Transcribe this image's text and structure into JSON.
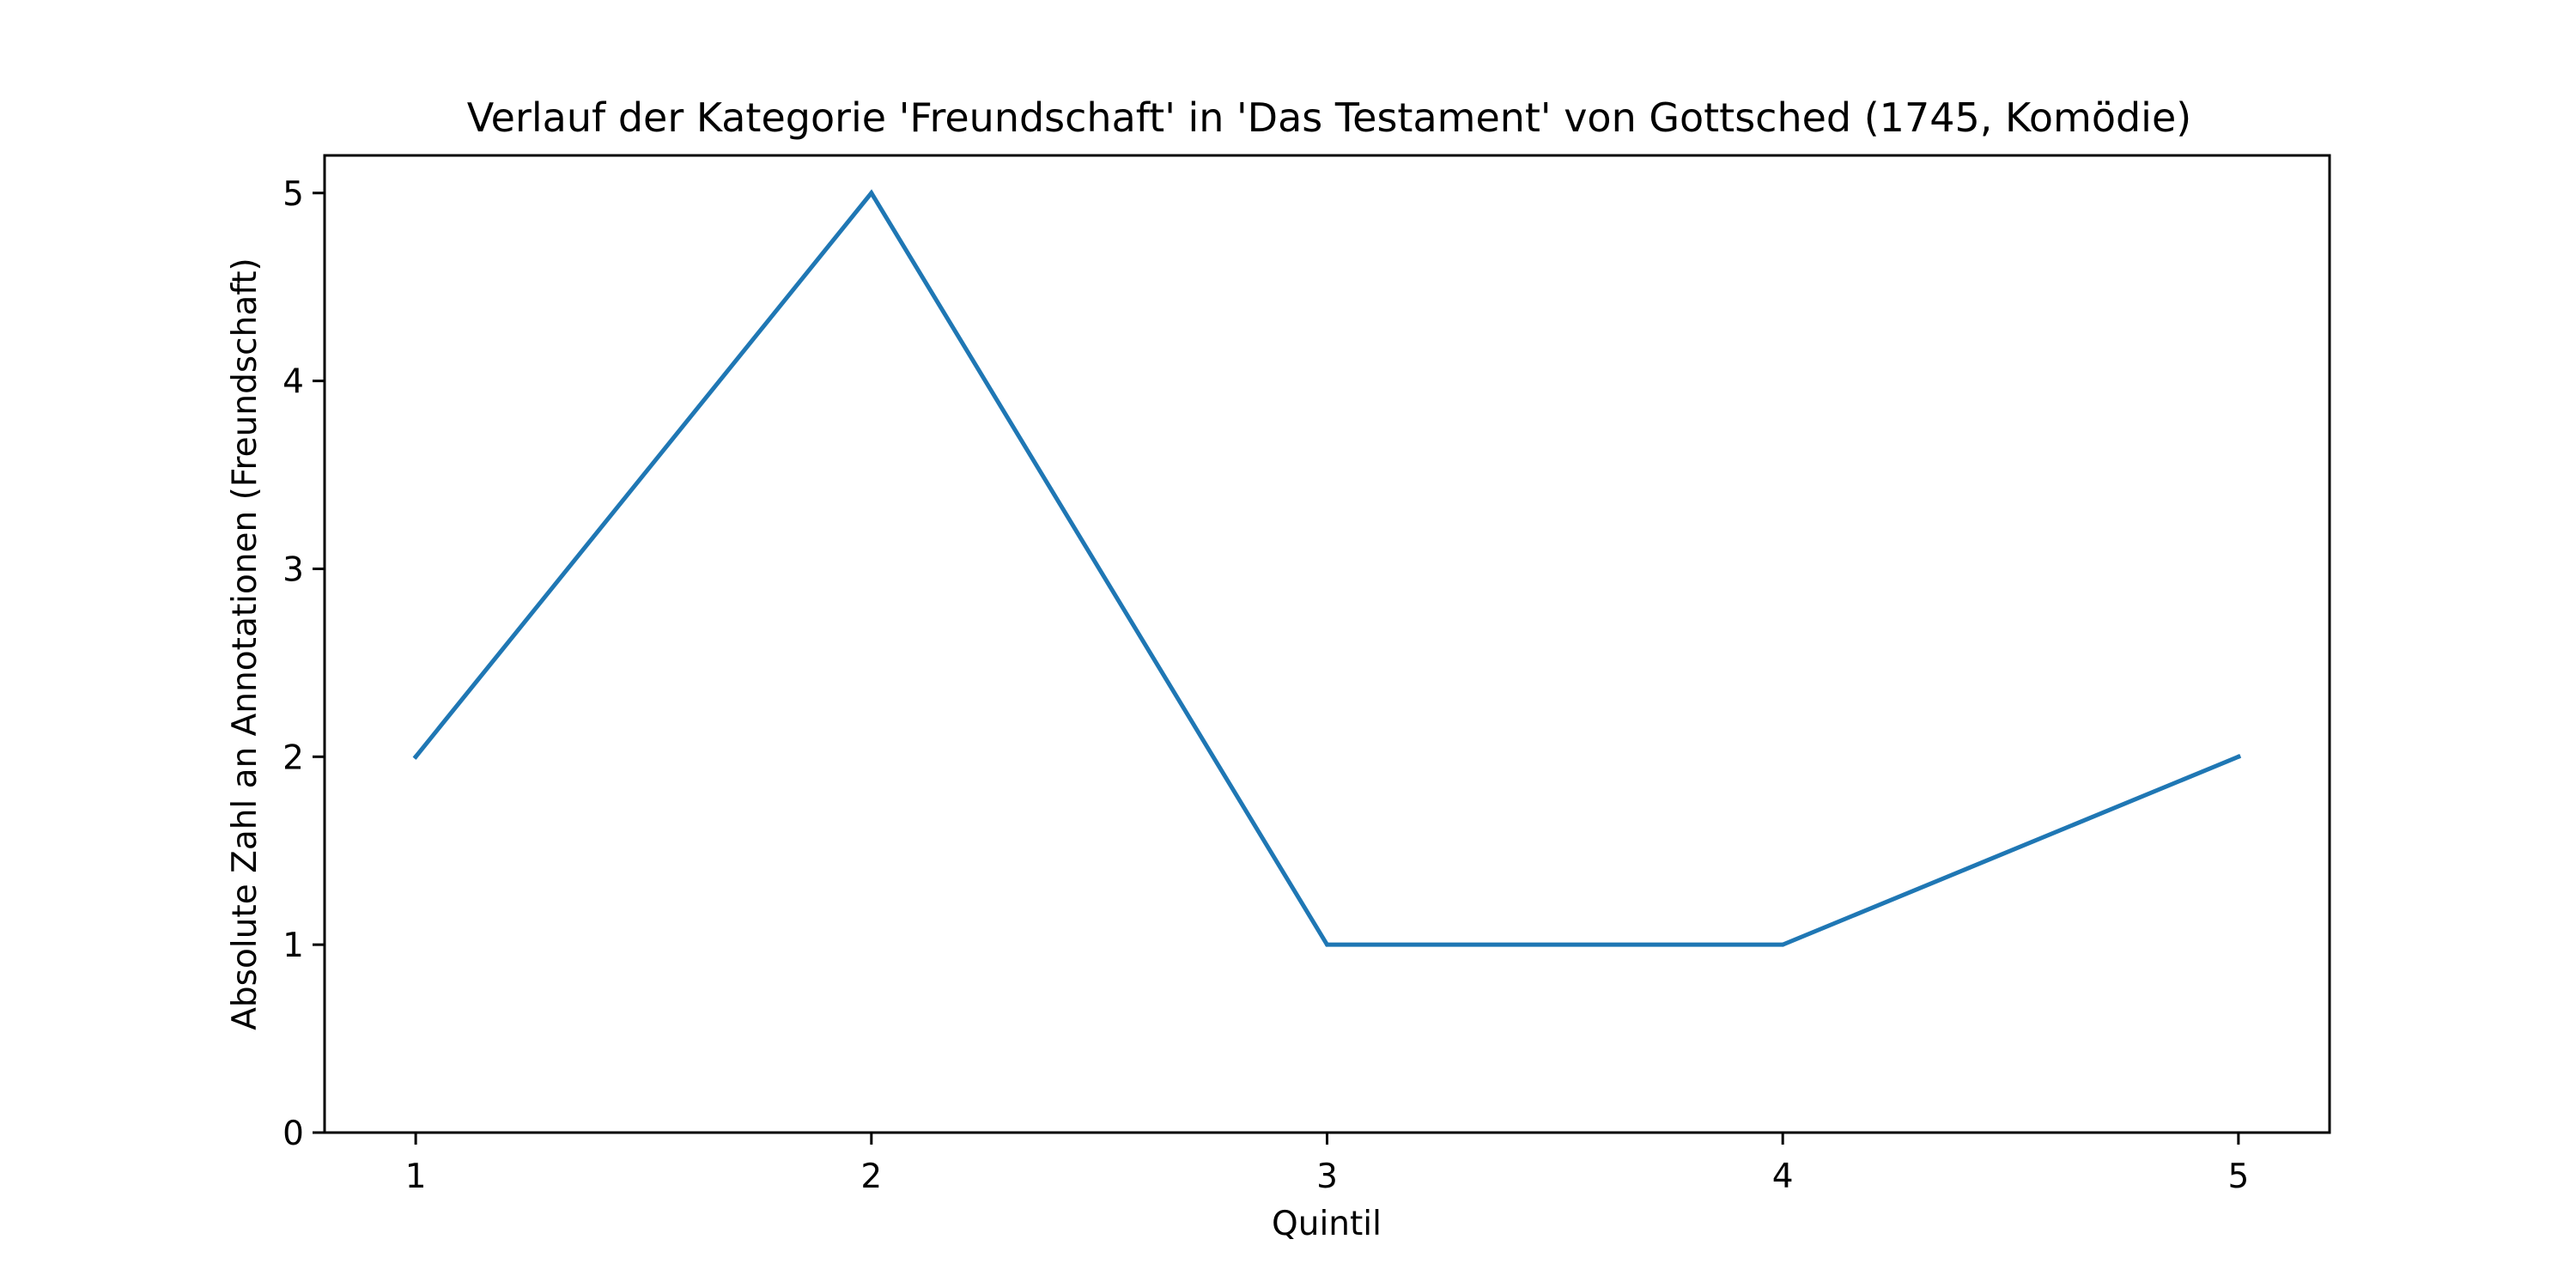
{
  "chart_data": {
    "type": "line",
    "title": "Verlauf der Kategorie 'Freundschaft' in 'Das Testament' von Gottsched (1745, Komödie)",
    "xlabel": "Quintil",
    "ylabel": "Absolute Zahl an Annotationen (Freundschaft)",
    "x": [
      1,
      2,
      3,
      4,
      5
    ],
    "x_tick_labels": [
      "1",
      "2",
      "3",
      "4",
      "5"
    ],
    "y_ticks": [
      0,
      1,
      2,
      3,
      4,
      5
    ],
    "y_tick_labels": [
      "0",
      "1",
      "2",
      "3",
      "4",
      "5"
    ],
    "series": [
      {
        "values": [
          2,
          5,
          1,
          1,
          2
        ],
        "color": "#1f77b4"
      }
    ],
    "xlim": [
      0.8,
      5.2
    ],
    "ylim": [
      0,
      5.2
    ],
    "grid": false,
    "legend": false
  }
}
